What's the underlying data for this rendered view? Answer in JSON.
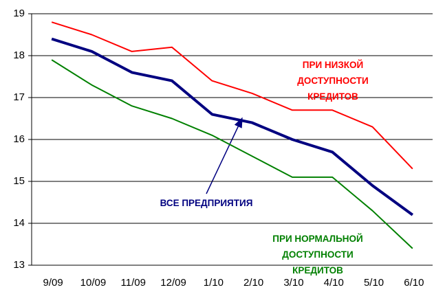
{
  "chart_data": {
    "type": "line",
    "categories": [
      "9/09",
      "10/09",
      "11/09",
      "12/09",
      "1/10",
      "2/10",
      "3/10",
      "4/10",
      "5/10",
      "6/10"
    ],
    "series": [
      {
        "name": "ПРИ НИЗКОЙ\nДОСТУПНОСТИ КРЕДИТОВ",
        "color": "#ff0000",
        "values": [
          18.8,
          18.5,
          18.1,
          18.2,
          17.4,
          17.1,
          16.7,
          16.7,
          16.3,
          15.3
        ]
      },
      {
        "name": "ВСЕ ПРЕДПРИЯТИЯ",
        "color": "#000080",
        "values": [
          18.4,
          18.1,
          17.6,
          17.4,
          16.6,
          16.4,
          16.0,
          15.7,
          14.9,
          14.2
        ]
      },
      {
        "name": "ПРИ НОРМАЛЬНОЙ\nДОСТУПНОСТИ КРЕДИТОВ",
        "color": "#008000",
        "values": [
          17.9,
          17.3,
          16.8,
          16.5,
          16.1,
          15.6,
          15.1,
          15.1,
          14.3,
          13.4
        ]
      }
    ],
    "ylim": [
      13,
      19
    ],
    "yticks": [
      13,
      14,
      15,
      16,
      17,
      18,
      19
    ],
    "grid": true
  }
}
